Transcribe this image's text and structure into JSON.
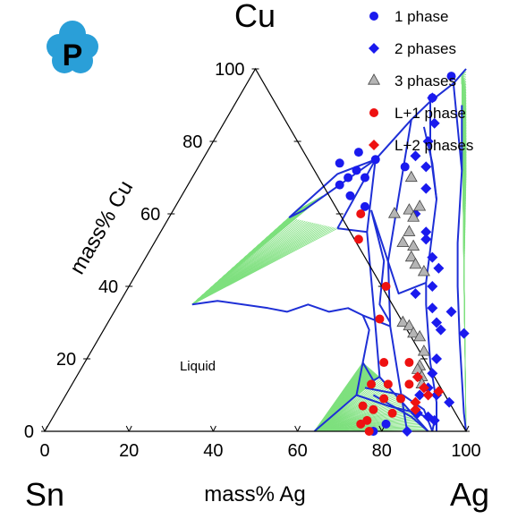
{
  "logo": {
    "letter": "P",
    "color": "#2a9fd8"
  },
  "chart_data": {
    "type": "scatter",
    "subtype": "ternary phase diagram",
    "corners": {
      "top": "Cu",
      "left": "Sn",
      "right": "Ag"
    },
    "axes": {
      "cu": {
        "label": "mass% Cu",
        "ticks": [
          "0",
          "20",
          "40",
          "60",
          "80",
          "100"
        ]
      },
      "ag": {
        "label": "mass% Ag",
        "ticks": [
          "0",
          "20",
          "40",
          "60",
          "80",
          "100"
        ]
      }
    },
    "region_labels": [
      {
        "text": "Liquid",
        "ag": 35,
        "cu": 14
      }
    ],
    "colors": {
      "boundary": "#1e2fd6",
      "tieline": "#7ee07e",
      "marker_blue": "#1a1aee",
      "marker_gray": "#b5b5b5",
      "marker_red": "#ee1111"
    },
    "legend": {
      "position": "top-right",
      "items": [
        {
          "label": "1 phase",
          "shape": "circle",
          "color": "#1a1aee"
        },
        {
          "label": "2 phases",
          "shape": "diamond",
          "color": "#1a1aee"
        },
        {
          "label": "3 phases",
          "shape": "triangle",
          "color": "#b5b5b5"
        },
        {
          "label": "L+1 phase",
          "shape": "circle",
          "color": "#ee1111"
        },
        {
          "label": "L+2 phases",
          "shape": "diamond",
          "color": "#ee1111"
        }
      ]
    },
    "boundaries": [
      [
        [
          41.5,
          56
        ],
        [
          41,
          75
        ],
        [
          31,
          61
        ],
        [
          28.5,
          59
        ]
      ],
      [
        [
          28.5,
          59
        ],
        [
          34,
          71
        ],
        [
          41,
          75
        ],
        [
          44,
          86
        ],
        [
          46,
          91
        ],
        [
          49,
          96
        ],
        [
          50,
          100
        ]
      ],
      [
        [
          41,
          75
        ],
        [
          49,
          55
        ],
        [
          64,
          29
        ],
        [
          72,
          15
        ],
        [
          91,
          0
        ]
      ],
      [
        [
          44,
          86
        ],
        [
          58,
          47
        ],
        [
          67.5,
          29
        ],
        [
          86,
          0
        ]
      ],
      [
        [
          46,
          91
        ],
        [
          53,
          77
        ],
        [
          61,
          64
        ],
        [
          70,
          41
        ],
        [
          73,
          35
        ],
        [
          82,
          19
        ],
        [
          89,
          8
        ],
        [
          93,
          0
        ]
      ],
      [
        [
          49,
          96
        ],
        [
          63,
          72
        ],
        [
          72,
          52
        ],
        [
          78,
          40
        ],
        [
          86,
          25
        ],
        [
          97,
          5
        ],
        [
          100,
          0
        ]
      ],
      [
        [
          54,
          90
        ],
        [
          63,
          72
        ]
      ],
      [
        [
          48,
          84
        ],
        [
          55,
          74
        ],
        [
          61,
          64
        ]
      ],
      [
        [
          41.5,
          56
        ],
        [
          49,
          55
        ]
      ],
      [
        [
          47,
          61
        ],
        [
          57,
          47
        ],
        [
          62,
          35
        ],
        [
          67,
          30
        ]
      ],
      [
        [
          47,
          61
        ],
        [
          65,
          38
        ],
        [
          70,
          41
        ]
      ],
      [
        [
          17.5,
          35
        ],
        [
          23,
          36
        ],
        [
          36,
          34
        ],
        [
          41,
          33
        ],
        [
          45,
          35
        ],
        [
          51,
          33
        ],
        [
          55,
          34
        ],
        [
          59.5,
          32
        ],
        [
          67.5,
          29
        ]
      ],
      [
        [
          59.5,
          32
        ],
        [
          63,
          28
        ],
        [
          66,
          19
        ],
        [
          71,
          14
        ],
        [
          72,
          15
        ]
      ],
      [
        [
          66,
          19
        ],
        [
          69,
          10
        ],
        [
          64,
          0
        ]
      ],
      [
        [
          69,
          10
        ],
        [
          78,
          7
        ],
        [
          86,
          5
        ],
        [
          91,
          3
        ],
        [
          92,
          0
        ]
      ],
      [
        [
          73,
          10
        ],
        [
          85,
          4
        ],
        [
          91,
          0
        ]
      ],
      [
        [
          70,
          12
        ],
        [
          80,
          10
        ],
        [
          87,
          6
        ],
        [
          92,
          0
        ]
      ]
    ],
    "tielines": [
      {
        "from": [
          [
            29,
            60
          ],
          [
            29.5,
            61
          ],
          [
            30.5,
            62
          ],
          [
            31.5,
            63
          ],
          [
            32.5,
            64
          ],
          [
            33.5,
            65
          ]
        ],
        "to": [
          17.5,
          35
        ]
      },
      {
        "from": [
          [
            28.5,
            59
          ],
          [
            41.5,
            56
          ]
        ],
        "to": [
          17.5,
          35
        ]
      },
      {
        "from": [
          [
            50,
            100
          ],
          [
            65,
            70
          ],
          [
            79,
            41
          ],
          [
            100,
            0
          ]
        ],
        "to": [
          50,
          98
        ],
        "fan": true
      },
      {
        "from": [
          [
            66,
            19
          ],
          [
            72,
            15
          ],
          [
            91,
            0
          ]
        ],
        "to": [
          64,
          0
        ],
        "fan": true
      }
    ],
    "series": [
      {
        "name": "1 phase",
        "points": [
          [
            33,
            74
          ],
          [
            36,
            77
          ],
          [
            38,
            72
          ],
          [
            41,
            75
          ],
          [
            46,
            92
          ],
          [
            47.5,
            98
          ],
          [
            36,
            68
          ],
          [
            37,
            70
          ],
          [
            41,
            70
          ],
          [
            49,
            73
          ],
          [
            40,
            65
          ],
          [
            45,
            62
          ],
          [
            78,
            0
          ],
          [
            80,
            2
          ]
        ]
      },
      {
        "name": "2 phases",
        "points": [
          [
            46,
            92
          ],
          [
            50,
            85
          ],
          [
            51,
            80
          ],
          [
            54,
            73
          ],
          [
            50,
            76
          ],
          [
            57,
            67
          ],
          [
            58,
            60
          ],
          [
            63,
            55
          ],
          [
            64,
            53
          ],
          [
            68,
            48
          ],
          [
            71,
            45
          ],
          [
            72,
            40
          ],
          [
            69,
            38
          ],
          [
            75,
            34
          ],
          [
            80,
            33
          ],
          [
            78,
            30
          ],
          [
            80,
            28
          ],
          [
            86,
            27
          ],
          [
            83,
            20
          ],
          [
            84,
            16
          ],
          [
            88,
            10
          ],
          [
            84,
            10
          ],
          [
            86,
            5
          ],
          [
            89,
            4
          ],
          [
            86,
            0
          ],
          [
            91,
            3
          ],
          [
            92,
            8
          ],
          [
            85,
            12
          ]
        ]
      },
      {
        "name": "3 phases",
        "points": [
          [
            52,
            70
          ],
          [
            53,
            60
          ],
          [
            56,
            61
          ],
          [
            58,
            62
          ],
          [
            58,
            59
          ],
          [
            59,
            55
          ],
          [
            59,
            52
          ],
          [
            62,
            51
          ],
          [
            63,
            48
          ],
          [
            65,
            46
          ],
          [
            68,
            44
          ],
          [
            70,
            30
          ],
          [
            72,
            29
          ],
          [
            74,
            27
          ],
          [
            76,
            26
          ],
          [
            79,
            22
          ],
          [
            80,
            18
          ],
          [
            80,
            17
          ],
          [
            82,
            15
          ],
          [
            83,
            13
          ]
        ]
      },
      {
        "name": "L+1 phase",
        "points": [
          [
            45,
            60
          ],
          [
            48,
            53
          ],
          [
            61,
            40
          ],
          [
            64,
            31
          ],
          [
            71,
            19
          ],
          [
            77,
            19
          ],
          [
            71,
            13
          ],
          [
            75,
            13
          ],
          [
            80,
            13
          ],
          [
            76,
            9
          ],
          [
            80,
            9
          ],
          [
            72,
            7
          ],
          [
            75,
            6
          ],
          [
            80,
            5
          ],
          [
            75,
            3
          ],
          [
            74,
            2
          ],
          [
            77,
            0
          ]
        ]
      },
      {
        "name": "L+2 phases",
        "points": [
          [
            81,
            15
          ],
          [
            84,
            12
          ],
          [
            86,
            10
          ],
          [
            88,
            11
          ],
          [
            84,
            8
          ],
          [
            85,
            6
          ]
        ]
      }
    ]
  }
}
